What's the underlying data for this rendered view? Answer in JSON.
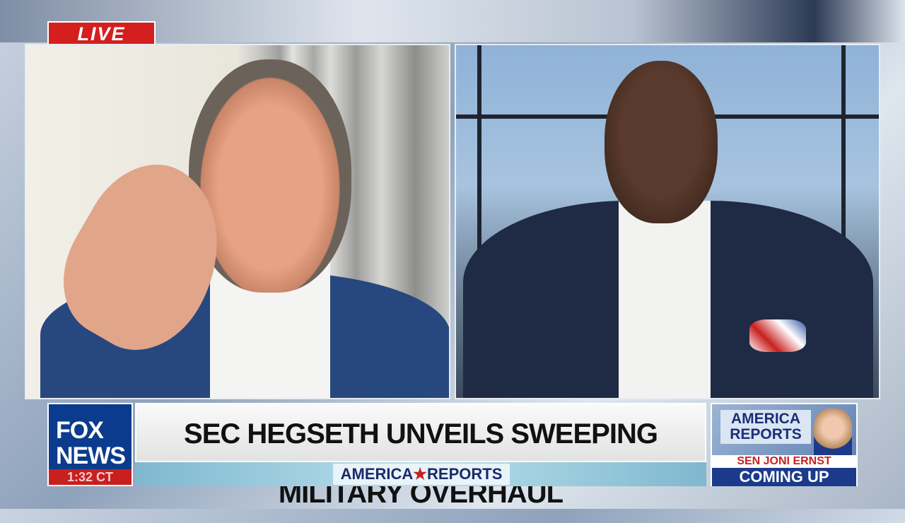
{
  "live_badge": "LIVE",
  "network_logo": {
    "line1": "FOX",
    "line2": "NEWS",
    "clock": "1:32 CT"
  },
  "headline": "SEC HEGSETH UNVEILS SWEEPING MILITARY OVERHAUL",
  "show": {
    "part1": "AMERICA",
    "star": "★",
    "part2": "REPORTS"
  },
  "promo": {
    "show_title": "AMERICA REPORTS",
    "guest": "SEN JONI ERNST",
    "status": "COMING UP"
  },
  "colors": {
    "live_red": "#d51f1f",
    "fox_blue": "#0b3b8c",
    "promo_blue": "#1b3a8a"
  }
}
